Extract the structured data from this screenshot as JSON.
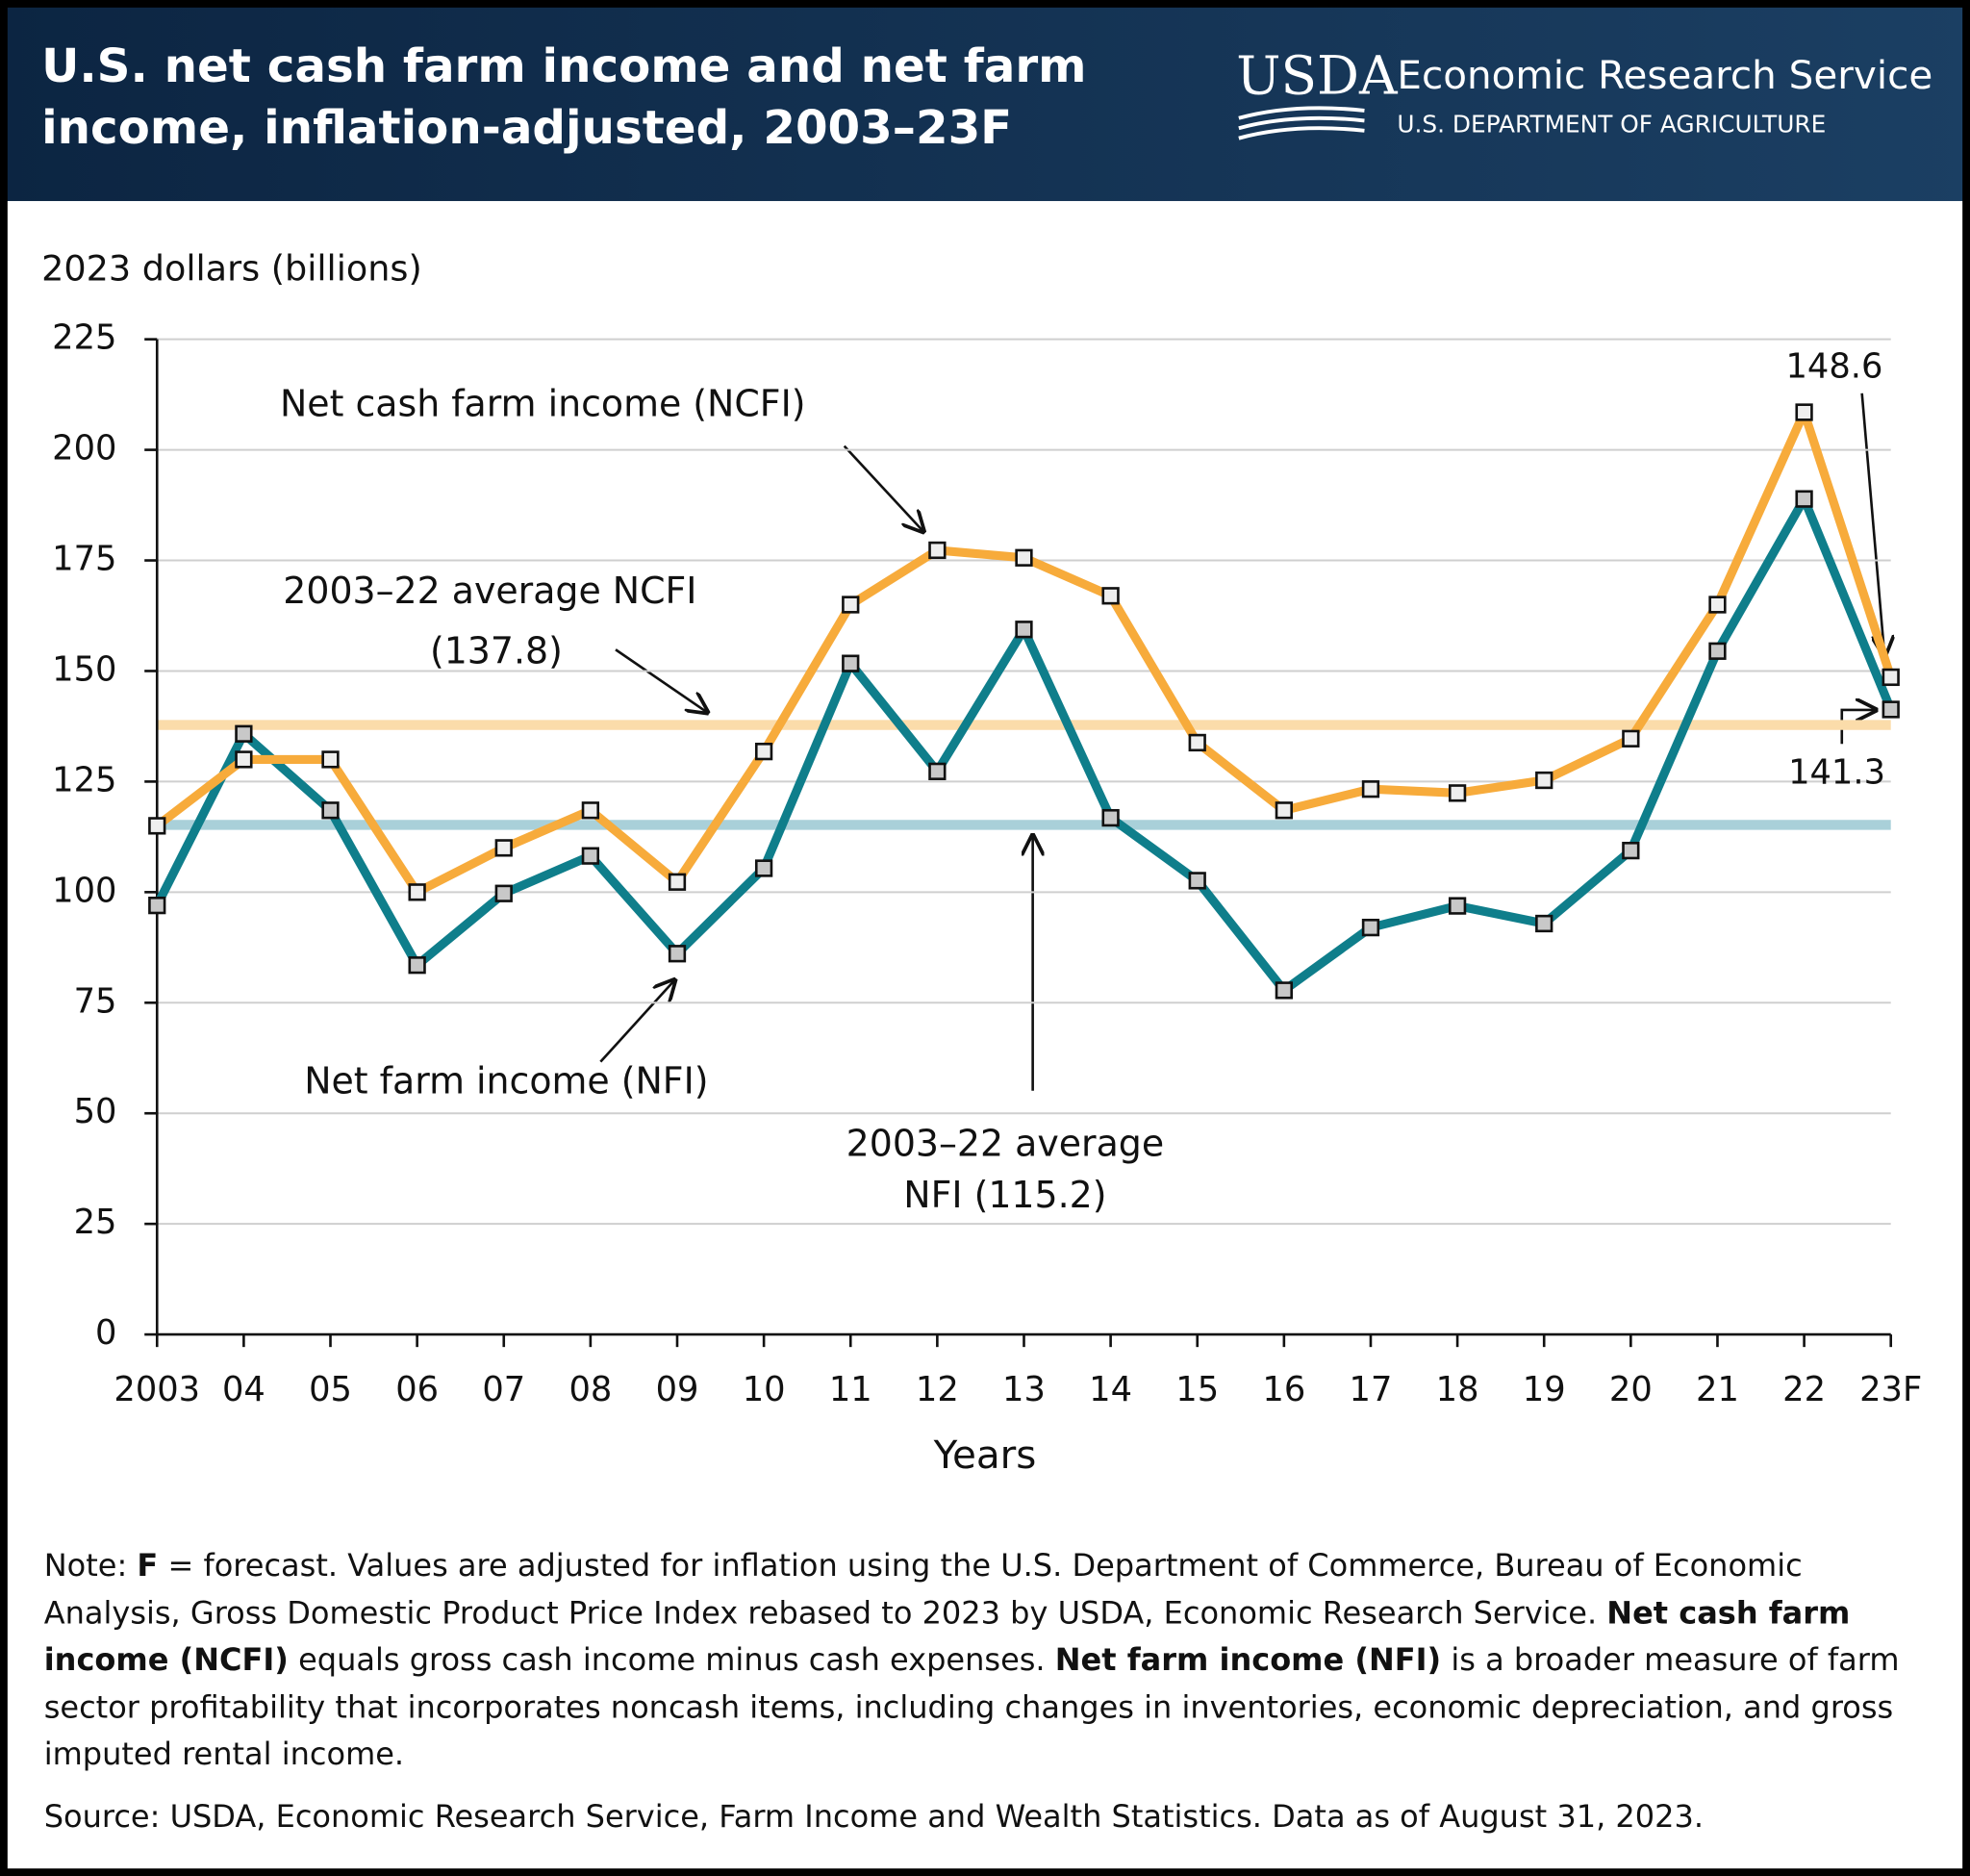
{
  "header": {
    "title_lines": [
      "U.S. net cash farm income and net farm",
      "income, inflation-adjusted, 2003–23F"
    ],
    "logo": "USDA",
    "agency": "Economic Research Service",
    "department": "U.S. DEPARTMENT OF AGRICULTURE"
  },
  "chart_data": {
    "type": "line",
    "y_axis_title": "2023 dollars (billions)",
    "x_axis_title": "Years",
    "categories": [
      "2003",
      "04",
      "05",
      "06",
      "07",
      "08",
      "09",
      "10",
      "11",
      "12",
      "13",
      "14",
      "15",
      "16",
      "17",
      "18",
      "19",
      "20",
      "21",
      "22",
      "23F"
    ],
    "series": [
      {
        "name": "Net cash farm income (NCFI)",
        "color": "#f7ab3b",
        "marker_fill": "#eeeeee",
        "values": [
          115,
          130,
          130,
          100,
          110,
          118.5,
          102.3,
          131.8,
          165,
          177.3,
          175.6,
          167,
          133.8,
          118.5,
          123.3,
          122.4,
          125.3,
          134.7,
          165,
          208.5,
          148.6
        ]
      },
      {
        "name": "Net farm income (NFI)",
        "color": "#0f7e8b",
        "marker_fill": "#c8c8c8",
        "values": [
          97,
          135.8,
          118.5,
          83.5,
          99.7,
          108.2,
          86.1,
          105.4,
          151.7,
          127.3,
          159.4,
          116.8,
          102.6,
          77.8,
          92,
          96.9,
          92.9,
          109.4,
          154.5,
          188.9,
          141.3
        ]
      }
    ],
    "reference_lines": [
      {
        "value": 137.8,
        "color": "#fbdcaa",
        "label_lines": [
          "2003–22 average NCFI",
          "(137.8)"
        ]
      },
      {
        "value": 115.2,
        "color": "#a9d0d9",
        "label_lines": [
          "2003–22 average",
          "NFI (115.2)"
        ]
      }
    ],
    "ylim": [
      0,
      225
    ],
    "yticks": [
      0,
      25,
      50,
      75,
      100,
      125,
      150,
      175,
      200,
      225
    ],
    "grid": true
  },
  "note": [
    {
      "text": "Note: "
    },
    {
      "text": "F",
      "bold": true
    },
    {
      "text": " = forecast. Values are adjusted for inflation using the U.S. Department of Commerce, Bureau of Economic Analysis, Gross Domestic Product Price Index rebased to 2023 by USDA, Economic Research Service. "
    },
    {
      "text": "Net cash farm income (NCFI)",
      "bold": true
    },
    {
      "text": " equals gross cash income minus cash expenses. "
    },
    {
      "text": "Net farm income (NFI)",
      "bold": true
    },
    {
      "text": " is a broader measure of farm sector profitability that incorporates noncash items, including changes in inventories, economic depreciation, and gross imputed rental income."
    }
  ],
  "source": "Source: USDA, Economic Research Service, Farm Income and Wealth Statistics. Data as of August 31, 2023."
}
